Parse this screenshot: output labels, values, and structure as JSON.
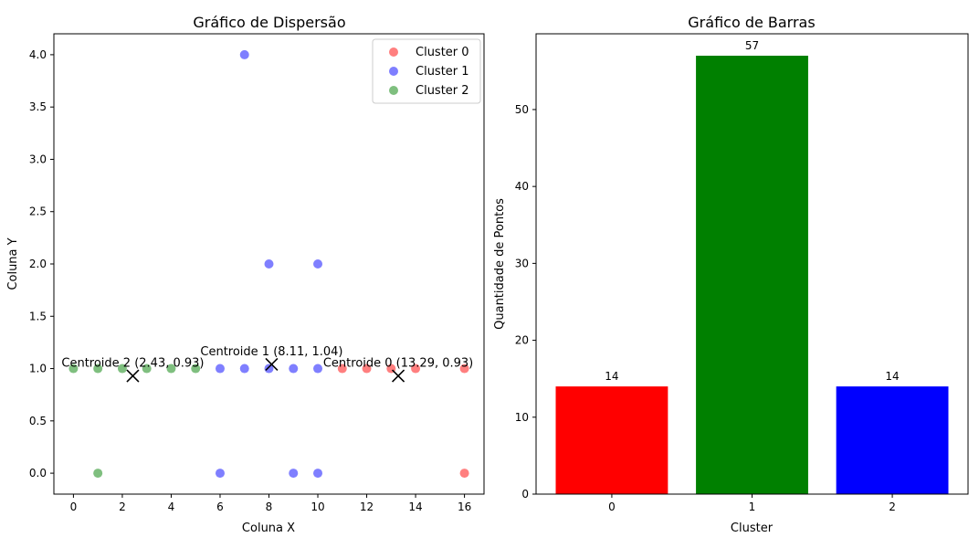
{
  "chart_data": [
    {
      "type": "scatter",
      "title": "Gráfico de Dispersão",
      "xlabel": "Coluna X",
      "ylabel": "Coluna Y",
      "xlim": [
        -0.8,
        16.8
      ],
      "ylim": [
        -0.2,
        4.2
      ],
      "xticks": [
        0,
        2,
        4,
        6,
        8,
        10,
        12,
        14,
        16
      ],
      "yticks": [
        0.0,
        0.5,
        1.0,
        1.5,
        2.0,
        2.5,
        3.0,
        3.5,
        4.0
      ],
      "ytick_labels": [
        "0.0",
        "0.5",
        "1.0",
        "1.5",
        "2.0",
        "2.5",
        "3.0",
        "3.5",
        "4.0"
      ],
      "legend_position": "top-right",
      "grid": false,
      "series": [
        {
          "name": "Cluster 0",
          "color": "#ff0000",
          "points": [
            [
              11,
              1
            ],
            [
              12,
              1
            ],
            [
              13,
              1
            ],
            [
              14,
              1
            ],
            [
              16,
              1
            ],
            [
              16,
              0
            ]
          ]
        },
        {
          "name": "Cluster 1",
          "color": "#0000ff",
          "points": [
            [
              6,
              1
            ],
            [
              7,
              1
            ],
            [
              8,
              1
            ],
            [
              9,
              1
            ],
            [
              10,
              1
            ],
            [
              6,
              0
            ],
            [
              9,
              0
            ],
            [
              10,
              0
            ],
            [
              8,
              2
            ],
            [
              10,
              2
            ],
            [
              7,
              4
            ]
          ]
        },
        {
          "name": "Cluster 2",
          "color": "#008000",
          "points": [
            [
              0,
              1
            ],
            [
              1,
              1
            ],
            [
              2,
              1
            ],
            [
              3,
              1
            ],
            [
              4,
              1
            ],
            [
              5,
              1
            ],
            [
              1,
              0
            ]
          ]
        }
      ],
      "centroids": [
        {
          "x": 13.29,
          "y": 0.93,
          "label": "Centroide 0 (13.29, 0.93)"
        },
        {
          "x": 8.11,
          "y": 1.04,
          "label": "Centroide 1 (8.11, 1.04)"
        },
        {
          "x": 2.43,
          "y": 0.93,
          "label": "Centroide 2 (2.43, 0.93)"
        }
      ]
    },
    {
      "type": "bar",
      "title": "Gráfico de Barras",
      "xlabel": "Cluster",
      "ylabel": "Quantidade de Pontos",
      "categories": [
        "0",
        "1",
        "2"
      ],
      "values": [
        14,
        57,
        14
      ],
      "data_labels": [
        "14",
        "57",
        "14"
      ],
      "colors": [
        "#ff0000",
        "#008000",
        "#0000ff"
      ],
      "ylim": [
        0,
        59.85
      ],
      "yticks": [
        0,
        10,
        20,
        30,
        40,
        50
      ],
      "grid": false
    }
  ]
}
